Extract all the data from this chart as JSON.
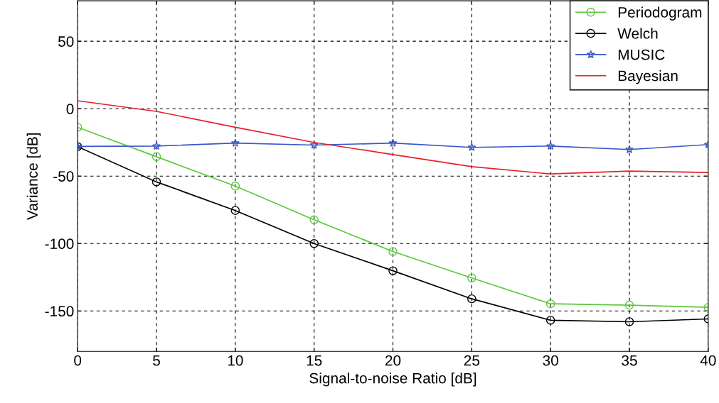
{
  "chart_data": {
    "type": "line",
    "xlabel": "Signal-to-noise Ratio [dB]",
    "ylabel": "Variance [dB]",
    "x": [
      0,
      5,
      10,
      15,
      20,
      25,
      30,
      35,
      40
    ],
    "series": [
      {
        "name": "Periodogram",
        "color": "#5cc83c",
        "marker": "circle",
        "values": [
          -13.8,
          -35.6,
          -57.4,
          -82.4,
          -105.9,
          -125.5,
          -144.7,
          -145.7,
          -147.3
        ]
      },
      {
        "name": "Welch",
        "color": "#000000",
        "marker": "circle",
        "values": [
          -28.2,
          -54.3,
          -75.5,
          -100,
          -120.2,
          -141,
          -156.9,
          -158,
          -155.9
        ]
      },
      {
        "name": "MUSIC",
        "color": "#3a56c8",
        "marker": "star",
        "values": [
          -28,
          -27.7,
          -25.5,
          -27,
          -25.5,
          -28.7,
          -27.7,
          -30.3,
          -26.6
        ]
      },
      {
        "name": "Bayesian",
        "color": "#e8202a",
        "marker": "none",
        "values": [
          5.9,
          -2,
          -13.8,
          -25,
          -34,
          -43,
          -48.4,
          -46.3,
          -47.3
        ]
      }
    ],
    "xlim": [
      0,
      40
    ],
    "xticks": [
      0,
      5,
      10,
      15,
      20,
      25,
      30,
      35,
      40
    ],
    "ylim": [
      -180,
      80
    ],
    "yticks": [
      -150,
      -100,
      -50,
      0,
      50
    ],
    "grid": true,
    "line_style": "solid",
    "legend": "top right"
  }
}
